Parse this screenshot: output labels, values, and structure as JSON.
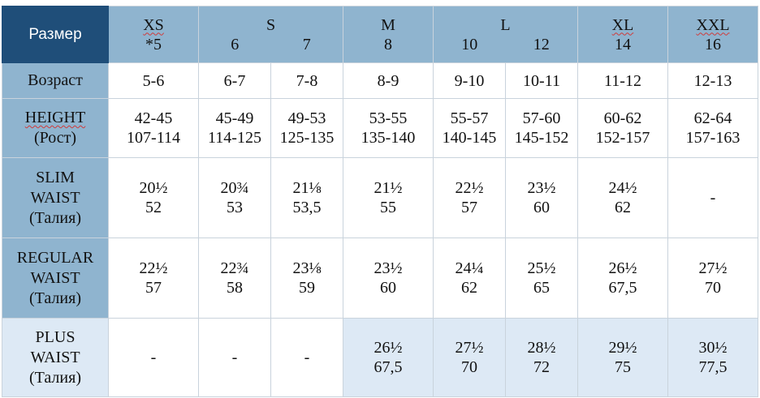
{
  "corner_label": "Размер",
  "header": {
    "xs": {
      "size": "XS",
      "number": "*5"
    },
    "s": {
      "size": "S",
      "numbers": [
        "6",
        "7"
      ]
    },
    "m": {
      "size": "M",
      "number": "8"
    },
    "l": {
      "size": "L",
      "numbers": [
        "10",
        "12"
      ]
    },
    "xl": {
      "size": "XL",
      "number": "14"
    },
    "xxl": {
      "size": "XXL",
      "number": "16"
    }
  },
  "rows": {
    "age": {
      "label": "Возраст",
      "values": [
        "5-6",
        "6-7",
        "7-8",
        "8-9",
        "9-10",
        "10-11",
        "11-12",
        "12-13"
      ]
    },
    "height": {
      "label": [
        "HEIGHT",
        "(Рост)"
      ],
      "values": [
        [
          "42-45",
          "107-114"
        ],
        [
          "45-49",
          "114-125"
        ],
        [
          "49-53",
          "125-135"
        ],
        [
          "53-55",
          "135-140"
        ],
        [
          "55-57",
          "140-145"
        ],
        [
          "57-60",
          "145-152"
        ],
        [
          "60-62",
          "152-157"
        ],
        [
          "62-64",
          "157-163"
        ]
      ]
    },
    "slim": {
      "label": [
        "SLIM",
        "WAIST",
        "(Талия)"
      ],
      "values": [
        [
          "20½",
          "52"
        ],
        [
          "20¾",
          "53"
        ],
        [
          "21⅛",
          "53,5"
        ],
        [
          "21½",
          "55"
        ],
        [
          "22½",
          "57"
        ],
        [
          "23½",
          "60"
        ],
        [
          "24½",
          "62"
        ],
        [
          "-"
        ]
      ]
    },
    "regular": {
      "label": [
        "REGULAR",
        "WAIST",
        "(Талия)"
      ],
      "values": [
        [
          "22½",
          "57"
        ],
        [
          "22¾",
          "58"
        ],
        [
          "23⅛",
          "59"
        ],
        [
          "23½",
          "60"
        ],
        [
          "24¼",
          "62"
        ],
        [
          "25½",
          "65"
        ],
        [
          "26½",
          "67,5"
        ],
        [
          "27½",
          "70"
        ]
      ]
    },
    "plus": {
      "label": [
        "PLUS",
        "WAIST",
        "(Талия)"
      ],
      "values": [
        [
          "-"
        ],
        [
          "-"
        ],
        [
          "-"
        ],
        [
          "26½",
          "67,5"
        ],
        [
          "27½",
          "70"
        ],
        [
          "28½",
          "72"
        ],
        [
          "29½",
          "75"
        ],
        [
          "30½",
          "77,5"
        ]
      ]
    }
  }
}
